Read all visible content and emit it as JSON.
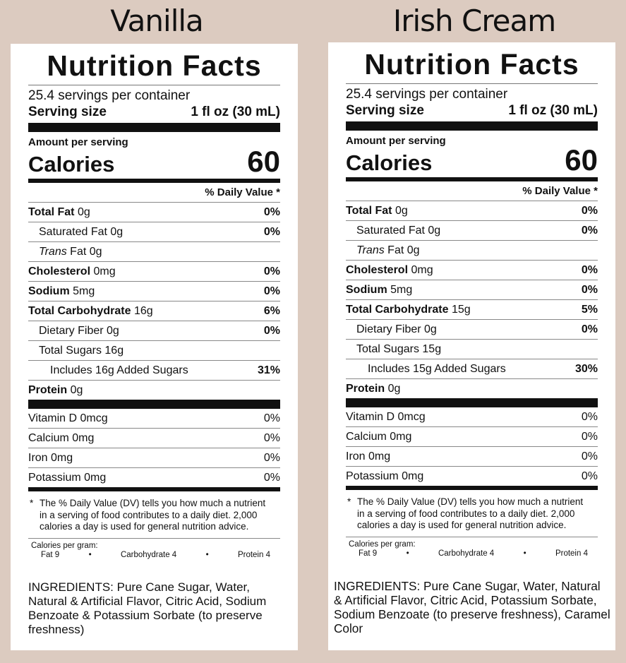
{
  "panels": [
    {
      "flavor": "Vanilla",
      "title": "Nutrition Facts",
      "servings": "25.4 servings per container",
      "serving_size_label": "Serving size",
      "serving_size": "1 fl oz (30 mL)",
      "amount_per_serving": "Amount per serving",
      "calories_label": "Calories",
      "calories": 60,
      "dv_header": "% Daily Value *",
      "nutrients": [
        {
          "name": "Total Fat",
          "amount": "0g",
          "dv": "0%",
          "sub": [
            {
              "name": "Saturated Fat",
              "amount": "0g",
              "dv": "0%"
            },
            {
              "name_italic": "Trans",
              "name": "Fat",
              "amount": "0g"
            }
          ]
        },
        {
          "name": "Cholesterol",
          "amount": "0mg",
          "dv": "0%"
        },
        {
          "name": "Sodium",
          "amount": "5mg",
          "dv": "0%"
        },
        {
          "name": "Total Carbohydrate",
          "amount": "16g",
          "dv": "6%",
          "sub": [
            {
              "name": "Dietary Fiber",
              "amount": "0g",
              "dv": "0%"
            },
            {
              "name": "Total Sugars",
              "amount": "16g",
              "sub": [
                {
                  "name": "Includes 16g Added Sugars",
                  "dv": "31%"
                }
              ]
            }
          ]
        },
        {
          "name": "Protein",
          "amount": "0g"
        }
      ],
      "vitamins": [
        {
          "name": "Vitamin D 0mcg",
          "dv": "0%"
        },
        {
          "name": "Calcium 0mg",
          "dv": "0%"
        },
        {
          "name": "Iron 0mg",
          "dv": "0%"
        },
        {
          "name": "Potassium 0mg",
          "dv": "0%"
        }
      ],
      "footnote_marker": "*",
      "footnote": "The % Daily Value (DV) tells you how much a nutrient in a serving of food contributes to a daily diet. 2,000 calories a day is used for general nutrition advice.",
      "calories_per_gram": "Calories per gram:",
      "calories_per_gram_items": [
        "Fat 9",
        "Carbohydrate 4",
        "Protein 4"
      ],
      "separator": "•",
      "ingredients": "INGREDIENTS: Pure Cane Sugar, Water, Natural & Artificial Flavor, Citric Acid, Sodium Benzoate & Potassium Sorbate (to preserve freshness)"
    },
    {
      "flavor": "Irish Cream",
      "title": "Nutrition Facts",
      "servings": "25.4 servings per container",
      "serving_size_label": "Serving size",
      "serving_size": "1 fl oz (30 mL)",
      "amount_per_serving": "Amount per serving",
      "calories_label": "Calories",
      "calories": 60,
      "dv_header": "% Daily Value *",
      "nutrients": [
        {
          "name": "Total Fat",
          "amount": "0g",
          "dv": "0%",
          "sub": [
            {
              "name": "Saturated Fat",
              "amount": "0g",
              "dv": "0%"
            },
            {
              "name_italic": "Trans",
              "name": "Fat",
              "amount": "0g"
            }
          ]
        },
        {
          "name": "Cholesterol",
          "amount": "0mg",
          "dv": "0%"
        },
        {
          "name": "Sodium",
          "amount": "5mg",
          "dv": "0%"
        },
        {
          "name": "Total Carbohydrate",
          "amount": "15g",
          "dv": "5%",
          "sub": [
            {
              "name": "Dietary Fiber",
              "amount": "0g",
              "dv": "0%"
            },
            {
              "name": "Total Sugars",
              "amount": "15g",
              "sub": [
                {
                  "name": "Includes 15g Added Sugars",
                  "dv": "30%"
                }
              ]
            }
          ]
        },
        {
          "name": "Protein",
          "amount": "0g"
        }
      ],
      "vitamins": [
        {
          "name": "Vitamin D 0mcg",
          "dv": "0%"
        },
        {
          "name": "Calcium 0mg",
          "dv": "0%"
        },
        {
          "name": "Iron 0mg",
          "dv": "0%"
        },
        {
          "name": "Potassium 0mg",
          "dv": "0%"
        }
      ],
      "footnote_marker": "*",
      "footnote": "The % Daily Value (DV) tells you how much a nutrient in a serving of food contributes to a daily diet. 2,000 calories a day is used for general nutrition advice.",
      "calories_per_gram": "Calories per gram:",
      "calories_per_gram_items": [
        "Fat 9",
        "Carbohydrate 4",
        "Protein 4"
      ],
      "separator": "•",
      "ingredients": "INGREDIENTS: Pure Cane Sugar, Water, Natural & Artificial Flavor, Citric Acid, Potassium Sorbate, Sodium Benzoate (to preserve freshness), Caramel Color"
    }
  ]
}
